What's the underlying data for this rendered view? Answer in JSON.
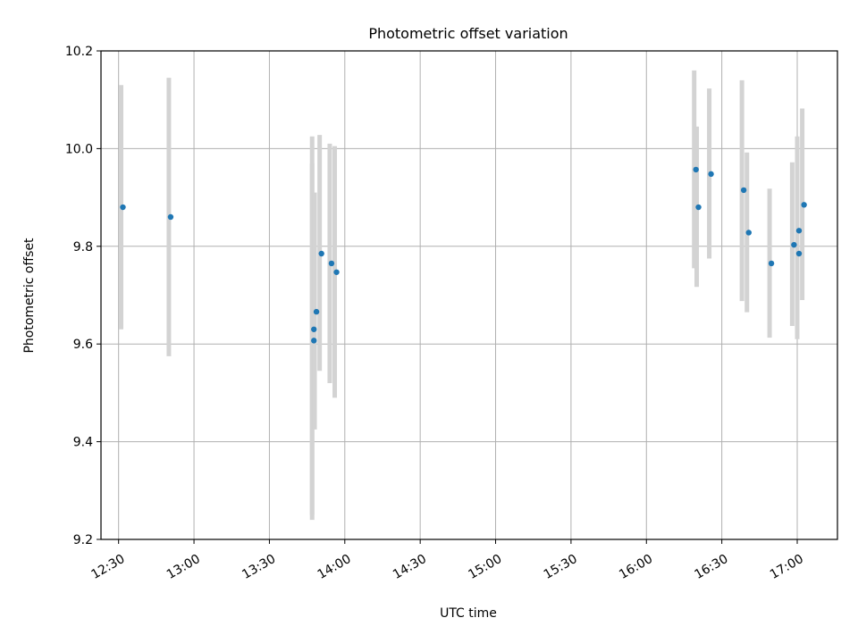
{
  "chart_data": {
    "type": "scatter",
    "title": "Photometric offset variation",
    "xlabel": "UTC time",
    "ylabel": "Photometric offset",
    "grid": true,
    "error_bar_color": "#d3d3d3",
    "marker_color": "#1f77b4",
    "ylim": [
      9.2,
      10.2
    ],
    "yticks": [
      "9.2",
      "9.4",
      "9.6",
      "9.8",
      "10.0",
      "10.2"
    ],
    "xlim": [
      "12:23",
      "17:16"
    ],
    "xticks": [
      "12:30",
      "13:00",
      "13:30",
      "14:00",
      "14:30",
      "15:00",
      "15:30",
      "16:00",
      "16:30",
      "17:00"
    ],
    "series": [
      {
        "points": [
          {
            "x": "12:31",
            "y": 9.88,
            "ylo": 9.63,
            "yhi": 10.13
          },
          {
            "x": "12:50",
            "y": 9.86,
            "ylo": 9.575,
            "yhi": 10.145
          },
          {
            "x": "13:47",
            "y": 9.63,
            "ylo": 9.24,
            "yhi": 10.025
          },
          {
            "x": "13:47",
            "y": 9.607,
            "ylo": 9.25,
            "yhi": 9.97
          },
          {
            "x": "13:48",
            "y": 9.666,
            "ylo": 9.425,
            "yhi": 9.91
          },
          {
            "x": "13:50",
            "y": 9.785,
            "ylo": 9.545,
            "yhi": 10.028
          },
          {
            "x": "13:54",
            "y": 9.765,
            "ylo": 9.52,
            "yhi": 10.01
          },
          {
            "x": "13:56",
            "y": 9.747,
            "ylo": 9.49,
            "yhi": 10.005
          },
          {
            "x": "16:19",
            "y": 9.957,
            "ylo": 9.755,
            "yhi": 10.16
          },
          {
            "x": "16:20",
            "y": 9.88,
            "ylo": 9.717,
            "yhi": 10.045
          },
          {
            "x": "16:25",
            "y": 9.948,
            "ylo": 9.775,
            "yhi": 10.123
          },
          {
            "x": "16:38",
            "y": 9.915,
            "ylo": 9.688,
            "yhi": 10.14
          },
          {
            "x": "16:40",
            "y": 9.828,
            "ylo": 9.665,
            "yhi": 9.992
          },
          {
            "x": "16:49",
            "y": 9.765,
            "ylo": 9.613,
            "yhi": 9.918
          },
          {
            "x": "16:58",
            "y": 9.803,
            "ylo": 9.637,
            "yhi": 9.972
          },
          {
            "x": "17:00",
            "y": 9.832,
            "ylo": 9.64,
            "yhi": 10.025
          },
          {
            "x": "17:00",
            "y": 9.785,
            "ylo": 9.61,
            "yhi": 9.962
          },
          {
            "x": "17:02",
            "y": 9.885,
            "ylo": 9.69,
            "yhi": 10.082
          }
        ]
      }
    ]
  }
}
